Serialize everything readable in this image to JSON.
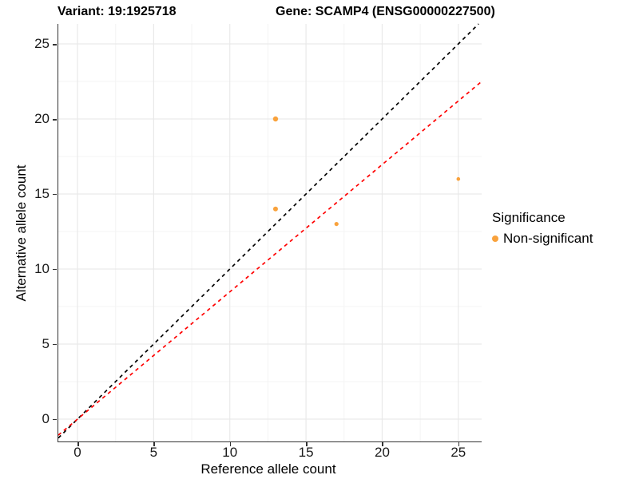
{
  "header": {
    "title_left": "Variant: 19:1925718",
    "title_right": "Gene: SCAMP4 (ENSG00000227500)"
  },
  "legend": {
    "title": "Significance",
    "items": [
      {
        "label": "Non-significant",
        "color": "#F9A23C"
      }
    ]
  },
  "colors": {
    "point": "#F9A23C",
    "identity_line": "#000000",
    "fit_line": "#FF0000",
    "axis": "#333333",
    "grid_major": "#E9E9E9",
    "grid_minor": "#F4F4F4"
  },
  "chart_data": {
    "type": "scatter",
    "title": "Variant: 19:1925718 — Gene: SCAMP4 (ENSG00000227500)",
    "xlabel": "Reference allele count",
    "ylabel": "Alternative allele count",
    "xlim": [
      -1.26,
      26.53
    ],
    "ylim": [
      -1.49,
      26.33
    ],
    "x_ticks": [
      0,
      5,
      10,
      15,
      20,
      25
    ],
    "y_ticks": [
      0,
      5,
      10,
      15,
      20,
      25
    ],
    "x_minor_ticks": [
      2.5,
      7.5,
      12.5,
      17.5,
      22.5
    ],
    "y_minor_ticks": [
      2.5,
      7.5,
      12.5,
      17.5,
      22.5
    ],
    "grid": true,
    "legend_position": "right",
    "series": [
      {
        "name": "Non-significant",
        "color": "#F9A23C",
        "points": [
          {
            "x": 13,
            "y": 20,
            "r": 3.2
          },
          {
            "x": 13,
            "y": 14,
            "r": 3.0
          },
          {
            "x": 17,
            "y": 13,
            "r": 2.6
          },
          {
            "x": 25,
            "y": 16,
            "r": 2.3
          }
        ]
      }
    ],
    "reference_lines": [
      {
        "name": "identity",
        "slope": 1.0,
        "intercept": 0,
        "color": "#000000",
        "style": "dashed"
      },
      {
        "name": "fit",
        "slope": 0.848,
        "intercept": 0,
        "color": "#FF0000",
        "style": "dashed"
      }
    ]
  }
}
